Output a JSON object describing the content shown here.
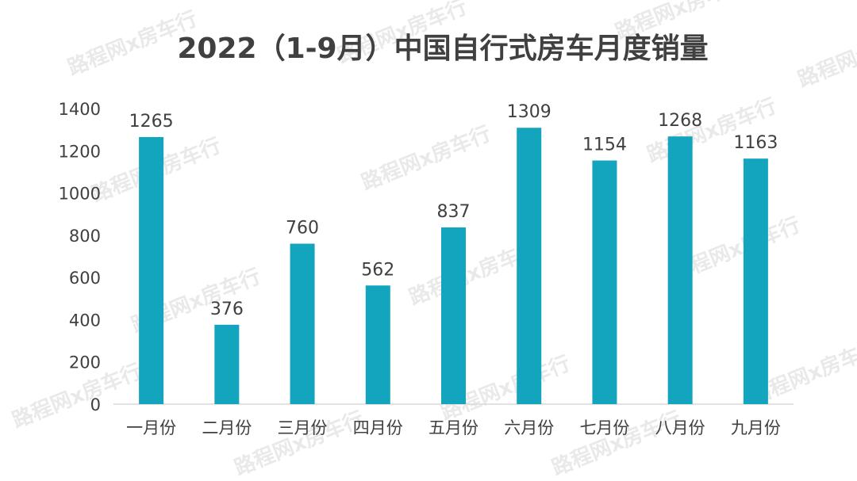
{
  "watermark": "路程网x房车行",
  "colors": {
    "bar": "#13A5BE",
    "text": "#404040",
    "axis": "#d9d9d9"
  },
  "chart_data": {
    "type": "bar",
    "title": "2022（1-9月）中国自行式房车月度销量",
    "xlabel": "",
    "ylabel": "",
    "categories": [
      "一月份",
      "二月份",
      "三月份",
      "四月份",
      "五月份",
      "六月份",
      "七月份",
      "八月份",
      "九月份"
    ],
    "values": [
      1265,
      376,
      760,
      562,
      837,
      1309,
      1154,
      1268,
      1163
    ],
    "ylim": [
      0,
      1400
    ],
    "yticks": [
      0,
      200,
      400,
      600,
      800,
      1000,
      1200,
      1400
    ],
    "data_labels": true,
    "grid": false,
    "legend": "none"
  }
}
